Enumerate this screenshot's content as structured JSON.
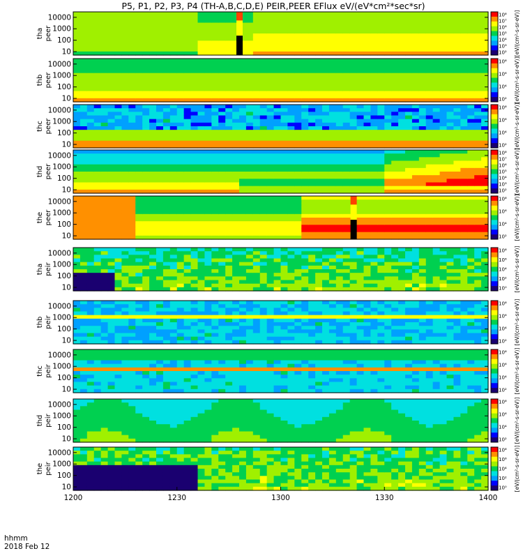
{
  "chart_data": {
    "type": "heatmap",
    "title": "P5, P1, P2, P3, P4 (TH-A,B,C,D,E) PEIR,PEER EFlux eV/(eV*cm²*sec*sr)",
    "x_ticks": [
      "1200",
      "1230",
      "1300",
      "1330",
      "1400"
    ],
    "x_range": [
      "12:00",
      "14:00"
    ],
    "time_label": "hhmm",
    "date_label": "2018 Feb 12",
    "y_scale": "log",
    "panels": [
      {
        "probe": "tha",
        "species": "peer",
        "ylabel_top": "tha",
        "ylabel_bottom": "peer",
        "yticks": [
          "10000",
          "1000",
          "100",
          "10"
        ],
        "ylim": [
          5,
          30000
        ],
        "colorbar_label": "[eV/(cm²-s-sr-eV)]",
        "colorbar_ticks": [
          "10⁸",
          "10⁷",
          "10⁶",
          "10⁵",
          "10⁴",
          "10³",
          "10²"
        ],
        "data_gap_at": "12:48"
      },
      {
        "probe": "thb",
        "species": "peer",
        "ylabel_top": "thb",
        "ylabel_bottom": "peer",
        "yticks": [
          "10000",
          "1000",
          "100",
          "10"
        ],
        "ylim": [
          5,
          30000
        ],
        "colorbar_label": "[eV/(cm²-s-sr-eV)]",
        "colorbar_ticks": [
          "10⁸",
          "10⁶",
          "10⁴",
          "10²"
        ]
      },
      {
        "probe": "thc",
        "species": "peer",
        "ylabel_top": "thc",
        "ylabel_bottom": "peer",
        "yticks": [
          "10000",
          "1000",
          "100",
          "10"
        ],
        "ylim": [
          5,
          30000
        ],
        "colorbar_label": "[eV/(cm²-s-sr-eV)]",
        "colorbar_ticks": [
          "10⁸",
          "10⁶",
          "10⁴",
          "10²"
        ]
      },
      {
        "probe": "thd",
        "species": "peer",
        "ylabel_top": "thd",
        "ylabel_bottom": "peer",
        "yticks": [
          "10000",
          "1000",
          "100",
          "10"
        ],
        "ylim": [
          5,
          30000
        ],
        "colorbar_label": "[eV/(cm²-s-sr-eV)]",
        "colorbar_ticks": [
          "10⁸",
          "10⁷",
          "10⁶",
          "10⁵",
          "10⁴",
          "10³",
          "10²"
        ]
      },
      {
        "probe": "the",
        "species": "peer",
        "ylabel_top": "the",
        "ylabel_bottom": "peer",
        "yticks": [
          "10000",
          "1000",
          "100",
          "10"
        ],
        "ylim": [
          5,
          30000
        ],
        "colorbar_label": "[eV/(cm²-s-sr-eV)]",
        "colorbar_ticks": [
          "10⁸",
          "10⁶",
          "10⁴",
          "10²"
        ],
        "data_gap_at": "13:21"
      },
      {
        "probe": "tha",
        "species": "peir",
        "ylabel_top": "tha",
        "ylabel_bottom": "peir",
        "yticks": [
          "10000",
          "1000",
          "100",
          "10"
        ],
        "ylim": [
          5,
          30000
        ],
        "colorbar_label": "[eV/(cm²-s-sr-eV)]",
        "colorbar_ticks": [
          "10⁸",
          "10⁶",
          "10⁴",
          "10²",
          "10⁰"
        ]
      },
      {
        "probe": "thb",
        "species": "peir",
        "ylabel_top": "thb",
        "ylabel_bottom": "peir",
        "yticks": [
          "10000",
          "1000",
          "100",
          "10"
        ],
        "ylim": [
          5,
          30000
        ],
        "colorbar_label": "[eV/(cm²-s-sr-eV)]",
        "colorbar_ticks": [
          "10⁸",
          "10⁶",
          "10⁴",
          "10²"
        ]
      },
      {
        "probe": "thc",
        "species": "peir",
        "ylabel_top": "thc",
        "ylabel_bottom": "peir",
        "yticks": [
          "10000",
          "1000",
          "100",
          "10"
        ],
        "ylim": [
          5,
          30000
        ],
        "colorbar_label": "[eV/(cm²-s-sr-eV)]",
        "colorbar_ticks": [
          "10⁸",
          "10⁶",
          "10⁴",
          "10²"
        ]
      },
      {
        "probe": "thd",
        "species": "peir",
        "ylabel_top": "thd",
        "ylabel_bottom": "peir",
        "yticks": [
          "10000",
          "1000",
          "100",
          "10"
        ],
        "ylim": [
          5,
          30000
        ],
        "colorbar_label": "[eV/(cm²-s-sr-eV)]",
        "colorbar_ticks": [
          "10⁸",
          "10⁶",
          "10⁴",
          "10²"
        ]
      },
      {
        "probe": "the",
        "species": "peir",
        "ylabel_top": "the",
        "ylabel_bottom": "peir",
        "yticks": [
          "10000",
          "1000",
          "100",
          "10"
        ],
        "ylim": [
          5,
          30000
        ],
        "colorbar_label": "[eV/(cm²-s-sr-eV)]",
        "colorbar_ticks": [
          "10⁸",
          "10⁶",
          "10⁴",
          "10²",
          "10⁰"
        ]
      }
    ],
    "colormap": [
      "#1a0070",
      "#0000ff",
      "#00a0ff",
      "#00e0e0",
      "#00d050",
      "#a0f000",
      "#ffff00",
      "#ff9000",
      "#ff0000",
      "#ffffff"
    ]
  }
}
